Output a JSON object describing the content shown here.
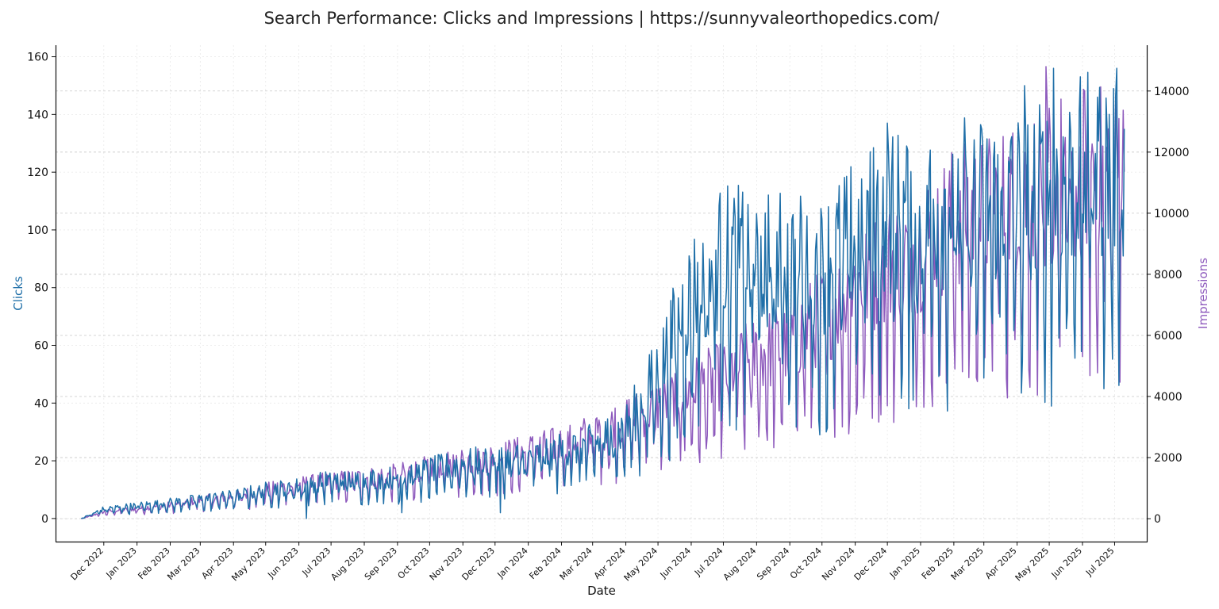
{
  "chart_data": {
    "type": "line",
    "title": "Search Performance: Clicks and Impressions | https://sunnyvaleorthopedics.com/",
    "xlabel": "Date",
    "ylabel_left": "Clicks",
    "ylabel_right": "Impressions",
    "left_axis": {
      "ticks": [
        0,
        20,
        40,
        60,
        80,
        100,
        120,
        140,
        160
      ],
      "range": [
        -8,
        164
      ]
    },
    "right_axis": {
      "ticks": [
        0,
        2000,
        4000,
        6000,
        8000,
        10000,
        12000,
        14000
      ],
      "range": [
        -750,
        15500
      ]
    },
    "x_tick_labels": [
      "Dec 2022",
      "Jan 2023",
      "Feb 2023",
      "Mar 2023",
      "Apr 2023",
      "May 2023",
      "Jun 2023",
      "Jul 2023",
      "Aug 2023",
      "Sep 2023",
      "Oct 2023",
      "Nov 2023",
      "Dec 2023",
      "Jan 2024",
      "Feb 2024",
      "Mar 2024",
      "Apr 2024",
      "May 2024",
      "Jun 2024",
      "Jul 2024",
      "Aug 2024",
      "Sep 2024",
      "Oct 2024",
      "Nov 2024",
      "Dec 2024",
      "Jan 2025",
      "Feb 2025",
      "Mar 2025",
      "Apr 2025",
      "May 2025",
      "Jun 2025",
      "Jul 2025"
    ],
    "x_range": [
      "2022-10-17",
      "2025-07-31"
    ],
    "grid": true,
    "colors": {
      "clicks": "#1f6fa8",
      "impressions": "#8e5bbd"
    },
    "series": [
      {
        "name": "Clicks",
        "axis": "left",
        "points": [
          [
            "2022-11-10",
            0
          ],
          [
            "2022-12-01",
            3
          ],
          [
            "2023-01-01",
            4
          ],
          [
            "2023-02-01",
            5
          ],
          [
            "2023-03-01",
            6
          ],
          [
            "2023-04-01",
            7
          ],
          [
            "2023-05-01",
            9
          ],
          [
            "2023-06-01",
            10
          ],
          [
            "2023-07-01",
            12
          ],
          [
            "2023-08-01",
            12
          ],
          [
            "2023-09-01",
            13
          ],
          [
            "2023-10-01",
            15
          ],
          [
            "2023-11-01",
            17
          ],
          [
            "2023-12-01",
            18
          ],
          [
            "2024-01-01",
            19
          ],
          [
            "2024-02-01",
            21
          ],
          [
            "2024-03-01",
            23
          ],
          [
            "2024-04-01",
            28
          ],
          [
            "2024-05-01",
            45
          ],
          [
            "2024-06-01",
            70
          ],
          [
            "2024-07-01",
            82
          ],
          [
            "2024-08-01",
            80
          ],
          [
            "2024-09-01",
            80
          ],
          [
            "2024-10-01",
            78
          ],
          [
            "2024-11-01",
            88
          ],
          [
            "2024-12-01",
            95
          ],
          [
            "2025-01-01",
            95
          ],
          [
            "2025-02-01",
            98
          ],
          [
            "2025-03-01",
            98
          ],
          [
            "2025-04-01",
            100
          ],
          [
            "2025-05-01",
            102
          ],
          [
            "2025-06-01",
            108
          ],
          [
            "2025-07-10",
            110
          ]
        ],
        "extremes": [
          [
            "2024-12-01",
            137
          ],
          [
            "2025-04-08",
            150
          ],
          [
            "2025-05-05",
            156
          ],
          [
            "2025-06-15",
            146
          ],
          [
            "2024-10-05",
            30
          ],
          [
            "2024-12-25",
            41
          ],
          [
            "2023-12-06",
            2
          ],
          [
            "2023-06-08",
            0
          ],
          [
            "2023-09-05",
            2
          ]
        ]
      },
      {
        "name": "Impressions",
        "axis": "right",
        "points": [
          [
            "2022-11-10",
            0
          ],
          [
            "2022-12-01",
            200
          ],
          [
            "2023-01-01",
            300
          ],
          [
            "2023-02-01",
            400
          ],
          [
            "2023-03-01",
            550
          ],
          [
            "2023-04-01",
            650
          ],
          [
            "2023-05-01",
            850
          ],
          [
            "2023-06-01",
            1000
          ],
          [
            "2023-07-01",
            1100
          ],
          [
            "2023-08-01",
            1200
          ],
          [
            "2023-09-01",
            1300
          ],
          [
            "2023-10-01",
            1500
          ],
          [
            "2023-11-01",
            1700
          ],
          [
            "2023-12-01",
            1800
          ],
          [
            "2024-01-01",
            2000
          ],
          [
            "2024-02-01",
            2200
          ],
          [
            "2024-03-01",
            2500
          ],
          [
            "2024-04-01",
            2900
          ],
          [
            "2024-05-01",
            3300
          ],
          [
            "2024-06-01",
            3800
          ],
          [
            "2024-07-01",
            4200
          ],
          [
            "2024-08-01",
            4800
          ],
          [
            "2024-09-01",
            5200
          ],
          [
            "2024-10-01",
            5900
          ],
          [
            "2024-11-01",
            6800
          ],
          [
            "2024-12-01",
            7400
          ],
          [
            "2025-01-01",
            8000
          ],
          [
            "2025-02-01",
            8800
          ],
          [
            "2025-03-01",
            9000
          ],
          [
            "2025-04-01",
            9400
          ],
          [
            "2025-05-01",
            10000
          ],
          [
            "2025-06-01",
            10200
          ],
          [
            "2025-07-10",
            10300
          ]
        ],
        "extremes": [
          [
            "2025-04-28",
            14800
          ],
          [
            "2025-07-05",
            13100
          ],
          [
            "2025-07-11",
            6600
          ],
          [
            "2024-11-25",
            3400
          ],
          [
            "2024-05-22",
            1900
          ]
        ]
      }
    ]
  }
}
